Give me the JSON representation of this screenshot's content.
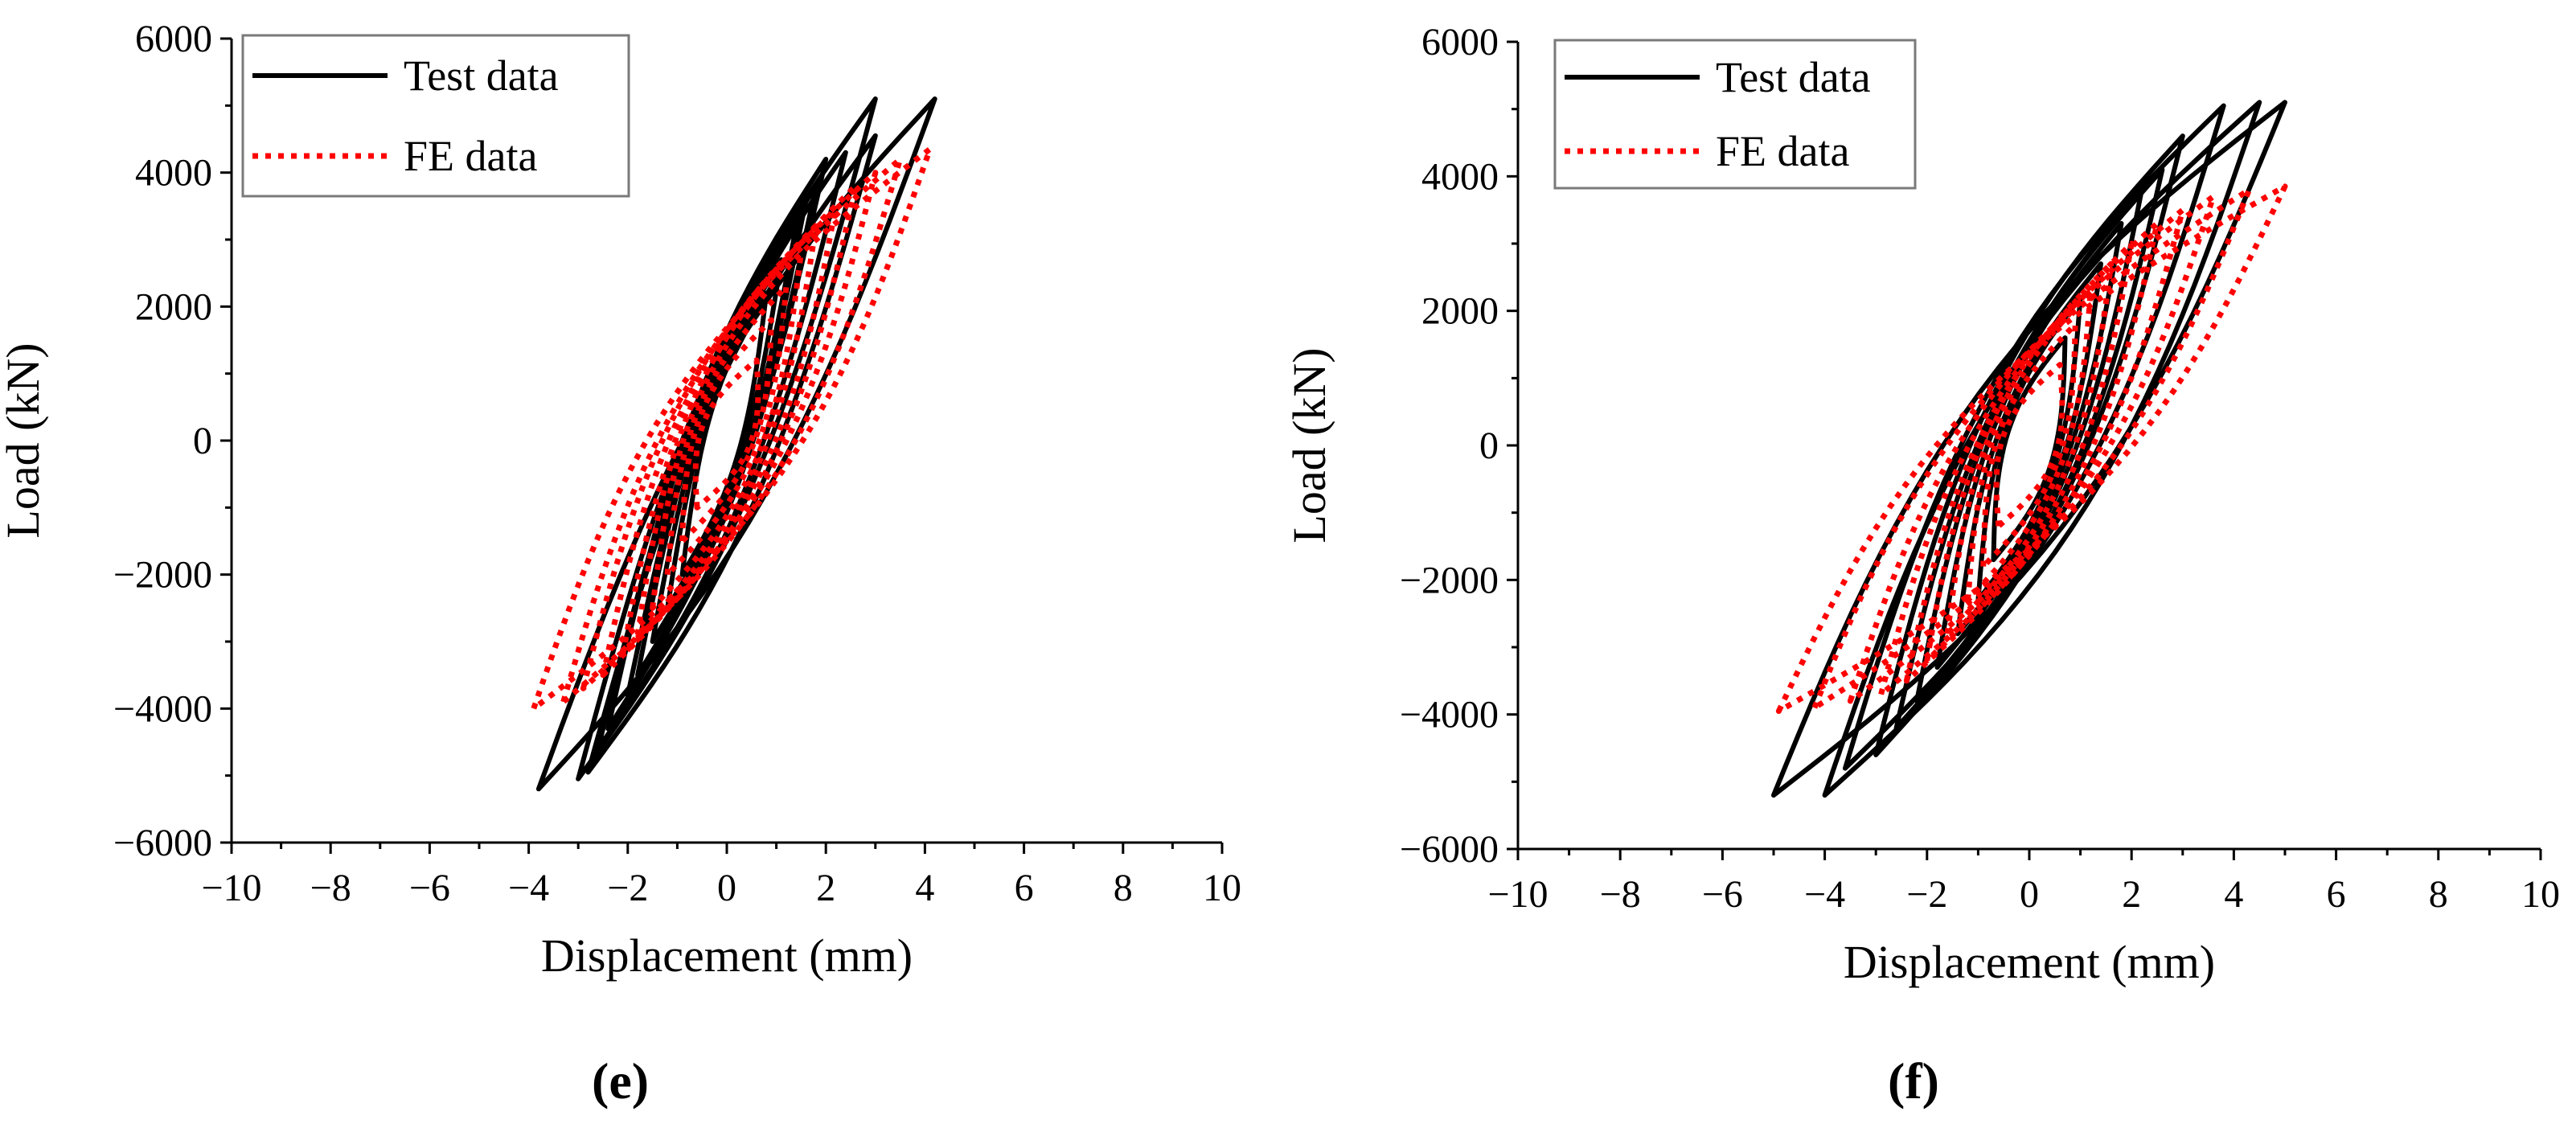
{
  "colors": {
    "test": "#000000",
    "fe": "#ff0000",
    "axis": "#000000",
    "legend_border": "#7a7a7a"
  },
  "chart_data": [
    {
      "panel": "(e)",
      "type": "line",
      "xlabel": "Displacement (mm)",
      "ylabel": "Load (kN)",
      "xlim": [
        -10,
        10
      ],
      "ylim": [
        -6000,
        6000
      ],
      "xticks": [
        "−10",
        "−8",
        "−6",
        "−4",
        "−2",
        "0",
        "2",
        "4",
        "6",
        "8",
        "10"
      ],
      "yticks": [
        "6000",
        "4000",
        "2000",
        "0",
        "−2000",
        "−4000",
        "−6000"
      ],
      "grid": false,
      "legend": {
        "position": "top-left",
        "entries": [
          "Test data",
          "FE data"
        ]
      },
      "series": [
        {
          "name": "Test data",
          "style": "solid",
          "peak_pos": [
            5100,
            5100,
            4550,
            4300,
            4200,
            3800,
            3600,
            3200,
            2700,
            2200
          ],
          "peak_disp_pos": [
            4.2,
            3.0,
            3.0,
            2.4,
            2.0,
            1.8,
            1.6,
            1.4,
            1.1,
            0.8
          ],
          "peak_neg": [
            -5200,
            -5050,
            -4950,
            -4600,
            -4300,
            -3800,
            -3500,
            -3000,
            -2500,
            -2000
          ],
          "peak_disp_neg": [
            -3.8,
            -3.0,
            -2.8,
            -2.6,
            -2.4,
            -2.0,
            -1.8,
            -1.5,
            -1.2,
            -0.9
          ],
          "loop_width": 0.55
        },
        {
          "name": "FE data",
          "style": "dotted",
          "peak_pos": [
            4350,
            4200,
            4000,
            3800,
            3500,
            3200,
            2800,
            2300,
            1800,
            1200
          ],
          "peak_disp_pos": [
            4.1,
            3.5,
            3.0,
            2.6,
            2.2,
            1.8,
            1.5,
            1.2,
            0.9,
            0.6
          ],
          "peak_neg": [
            -4000,
            -3900,
            -3700,
            -3500,
            -3200,
            -2900,
            -2500,
            -2000,
            -1500,
            -1000
          ],
          "peak_disp_neg": [
            -3.9,
            -3.3,
            -2.9,
            -2.5,
            -2.1,
            -1.8,
            -1.5,
            -1.2,
            -0.9,
            -0.6
          ],
          "loop_width": 1.05
        }
      ]
    },
    {
      "panel": "(f)",
      "type": "line",
      "xlabel": "Displacement (mm)",
      "ylabel": "Load (kN)",
      "xlim": [
        -10,
        10
      ],
      "ylim": [
        -6000,
        6000
      ],
      "xticks": [
        "−10",
        "−8",
        "−6",
        "−4",
        "−2",
        "0",
        "2",
        "4",
        "6",
        "8",
        "10"
      ],
      "yticks": [
        "6000",
        "4000",
        "2000",
        "0",
        "−2000",
        "−4000",
        "−6000"
      ],
      "grid": false,
      "legend": {
        "position": "top-left",
        "entries": [
          "Test data",
          "FE data"
        ]
      },
      "series": [
        {
          "name": "Test data",
          "style": "solid",
          "peak_pos": [
            5100,
            5100,
            5050,
            4600,
            4100,
            3800,
            3300,
            2700,
            2200,
            1600
          ],
          "peak_disp_pos": [
            5.0,
            4.5,
            3.8,
            3.0,
            2.6,
            2.2,
            1.8,
            1.4,
            1.0,
            0.7
          ],
          "peak_neg": [
            -5200,
            -5200,
            -4800,
            -4600,
            -4200,
            -3800,
            -3300,
            -2800,
            -2300,
            -1700
          ],
          "peak_disp_neg": [
            -5.0,
            -4.0,
            -3.6,
            -3.0,
            -2.6,
            -2.2,
            -1.8,
            -1.4,
            -1.0,
            -0.7
          ],
          "loop_width": 0.9
        },
        {
          "name": "FE data",
          "style": "dotted",
          "peak_pos": [
            3850,
            3800,
            3700,
            3500,
            3300,
            3000,
            2700,
            2300,
            1800,
            1200
          ],
          "peak_disp_pos": [
            5.0,
            4.3,
            3.6,
            3.0,
            2.5,
            2.0,
            1.6,
            1.2,
            0.9,
            0.6
          ],
          "peak_neg": [
            -3950,
            -3900,
            -3800,
            -3700,
            -3500,
            -3200,
            -2800,
            -2300,
            -1800,
            -1200
          ],
          "peak_disp_neg": [
            -4.9,
            -4.2,
            -3.5,
            -2.9,
            -2.4,
            -2.0,
            -1.6,
            -1.2,
            -0.9,
            -0.6
          ],
          "loop_width": 1.1
        }
      ]
    }
  ]
}
